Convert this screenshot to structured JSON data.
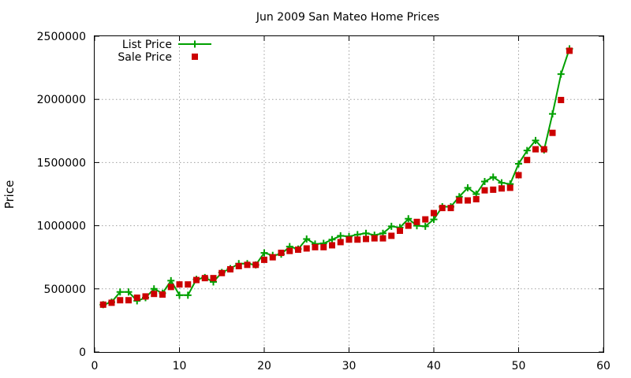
{
  "chart_data": {
    "type": "line",
    "title": "Jun 2009 San Mateo Home Prices",
    "xlabel": "",
    "ylabel": "Price",
    "xlim": [
      0,
      60
    ],
    "ylim": [
      0,
      2500000
    ],
    "x_ticks": [
      0,
      10,
      20,
      30,
      40,
      50,
      60
    ],
    "y_ticks": [
      0,
      500000,
      1000000,
      1500000,
      2000000,
      2500000
    ],
    "x_tick_labels": [
      "0",
      "10",
      "20",
      "30",
      "40",
      "50",
      "60"
    ],
    "y_tick_labels": [
      "0",
      "500000",
      "1000000",
      "1500000",
      "2000000",
      "2500000"
    ],
    "grid": true,
    "legend_position": "top-left",
    "x": [
      1,
      2,
      3,
      4,
      5,
      6,
      7,
      8,
      9,
      10,
      11,
      12,
      13,
      14,
      15,
      16,
      17,
      18,
      19,
      20,
      21,
      22,
      23,
      24,
      25,
      26,
      27,
      28,
      29,
      30,
      31,
      32,
      33,
      34,
      35,
      36,
      37,
      38,
      39,
      40,
      41,
      42,
      43,
      44,
      45,
      46,
      47,
      48,
      49,
      50,
      51,
      52,
      53,
      54,
      55,
      56
    ],
    "series": [
      {
        "name": "List Price",
        "style": "line-plus",
        "color": "#00a000",
        "values": [
          375000,
          395000,
          475000,
          475000,
          405000,
          430000,
          500000,
          465000,
          565000,
          450000,
          450000,
          575000,
          590000,
          555000,
          630000,
          660000,
          700000,
          700000,
          690000,
          785000,
          765000,
          775000,
          835000,
          815000,
          895000,
          855000,
          860000,
          890000,
          920000,
          915000,
          930000,
          940000,
          925000,
          940000,
          995000,
          985000,
          1055000,
          1000000,
          995000,
          1050000,
          1150000,
          1150000,
          1230000,
          1300000,
          1250000,
          1350000,
          1385000,
          1340000,
          1330000,
          1490000,
          1595000,
          1675000,
          1600000,
          1885000,
          2200000,
          2400000
        ]
      },
      {
        "name": "Sale Price",
        "style": "square",
        "color": "#cc0000",
        "values": [
          375000,
          390000,
          410000,
          410000,
          430000,
          440000,
          460000,
          455000,
          515000,
          535000,
          535000,
          570000,
          585000,
          585000,
          625000,
          655000,
          680000,
          690000,
          690000,
          730000,
          750000,
          785000,
          800000,
          810000,
          820000,
          830000,
          830000,
          845000,
          870000,
          890000,
          890000,
          895000,
          900000,
          900000,
          920000,
          960000,
          1000000,
          1030000,
          1050000,
          1100000,
          1140000,
          1140000,
          1200000,
          1200000,
          1210000,
          1280000,
          1285000,
          1295000,
          1300000,
          1400000,
          1520000,
          1605000,
          1605000,
          1735000,
          1995000,
          2385000
        ]
      }
    ]
  }
}
